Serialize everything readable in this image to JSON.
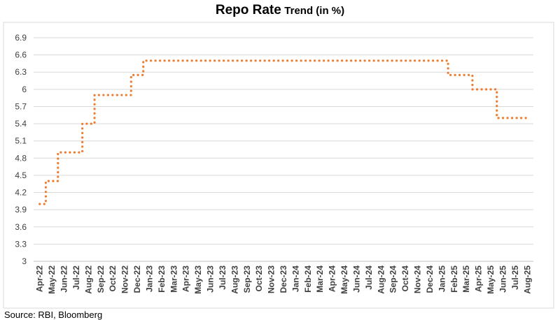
{
  "chart_data": {
    "type": "line",
    "title_main": "Repo Rate",
    "title_sub": "Trend (in %)",
    "source": "Source: RBI, Bloomberg",
    "ylim": [
      3,
      6.9
    ],
    "y_ticks": [
      "3",
      "3.3",
      "3.6",
      "3.9",
      "4.2",
      "4.5",
      "4.8",
      "5.1",
      "5.4",
      "5.7",
      "6",
      "6.3",
      "6.6",
      "6.9"
    ],
    "grid": true,
    "categories": [
      "Apr-22",
      "May-22",
      "Jun-22",
      "Jul-22",
      "Aug-22",
      "Sep-22",
      "Oct-22",
      "Nov-22",
      "Dec-22",
      "Jan-23",
      "Feb-23",
      "Mar-23",
      "Apr-23",
      "May-23",
      "Jun-23",
      "Jul-23",
      "Aug-23",
      "Sep-23",
      "Oct-23",
      "Nov-23",
      "Dec-23",
      "Jan-24",
      "Feb-24",
      "Mar-24",
      "Apr-24",
      "May-24",
      "Jun-24",
      "Jul-24",
      "Aug-24",
      "Sep-24",
      "Oct-24",
      "Nov-24",
      "Dec-24",
      "Jan-25",
      "Feb-25",
      "Mar-25",
      "Apr-25",
      "May-25",
      "Jun-25",
      "Jul-25",
      "Aug-25"
    ],
    "series": [
      {
        "color": "#ED7D31",
        "style": "dotted-step",
        "values": [
          4.0,
          4.4,
          4.9,
          4.9,
          5.4,
          5.9,
          5.9,
          5.9,
          6.25,
          6.5,
          6.5,
          6.5,
          6.5,
          6.5,
          6.5,
          6.5,
          6.5,
          6.5,
          6.5,
          6.5,
          6.5,
          6.5,
          6.5,
          6.5,
          6.5,
          6.5,
          6.5,
          6.5,
          6.5,
          6.5,
          6.5,
          6.5,
          6.5,
          6.5,
          6.25,
          6.25,
          6.0,
          6.0,
          5.5,
          5.5,
          5.5
        ]
      }
    ]
  }
}
